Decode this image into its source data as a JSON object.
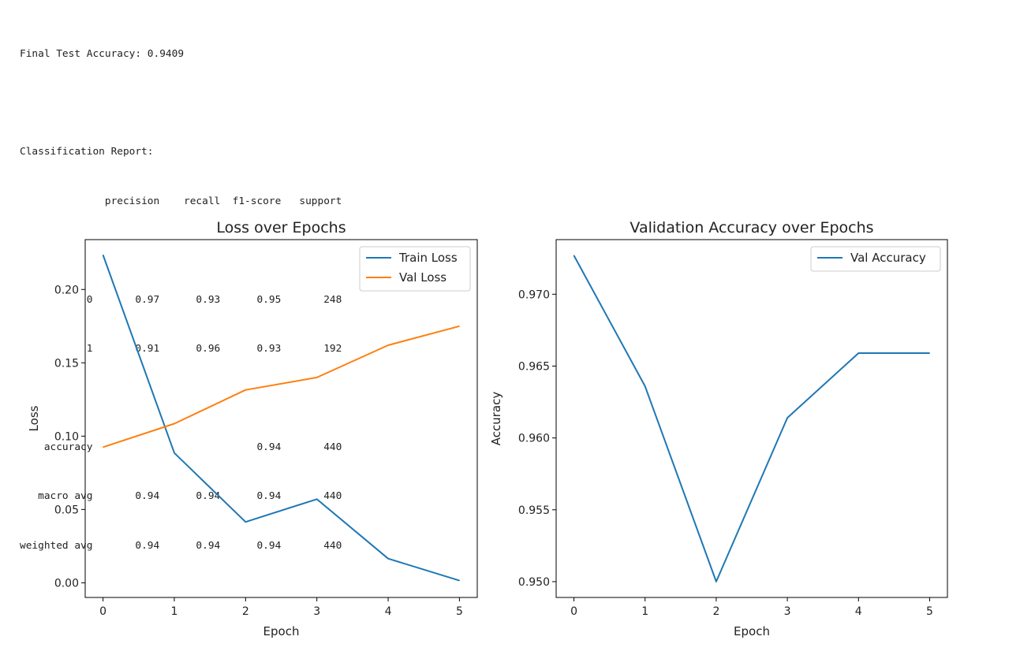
{
  "report": {
    "final_accuracy_line": "Final Test Accuracy: 0.9409",
    "classification_title": "Classification Report:",
    "header_line": "              precision    recall  f1-score   support",
    "rows": [
      "           0       0.97      0.93      0.95       248",
      "           1       0.91      0.96      0.93       192",
      "",
      "    accuracy                           0.94       440",
      "   macro avg       0.94      0.94      0.94       440",
      "weighted avg       0.94      0.94      0.94       440"
    ]
  },
  "chart_data": [
    {
      "type": "line",
      "title": "Loss over Epochs",
      "xlabel": "Epoch",
      "ylabel": "Loss",
      "x": [
        0,
        1,
        2,
        3,
        4,
        5
      ],
      "series": [
        {
          "name": "Train Loss",
          "color": "#1f77b4",
          "values": [
            0.2235,
            0.0885,
            0.0415,
            0.057,
            0.0165,
            0.0015
          ]
        },
        {
          "name": "Val Loss",
          "color": "#ff7f0e",
          "values": [
            0.0925,
            0.1085,
            0.1315,
            0.14,
            0.162,
            0.175
          ]
        }
      ],
      "xlim": [
        -0.25,
        5.25
      ],
      "ylim": [
        -0.01,
        0.234
      ],
      "xticks": [
        "0",
        "1",
        "2",
        "3",
        "4",
        "5"
      ],
      "yticks": [
        0.0,
        0.05,
        0.1,
        0.15,
        0.2
      ],
      "ytick_labels": [
        "0.00",
        "0.05",
        "0.10",
        "0.15",
        "0.20"
      ],
      "legend": "upper right",
      "grid": false
    },
    {
      "type": "line",
      "title": "Validation Accuracy over Epochs",
      "xlabel": "Epoch",
      "ylabel": "Accuracy",
      "x": [
        0,
        1,
        2,
        3,
        4,
        5
      ],
      "series": [
        {
          "name": "Val Accuracy",
          "color": "#1f77b4",
          "values": [
            0.9727,
            0.9636,
            0.95,
            0.9614,
            0.9659,
            0.9659
          ]
        }
      ],
      "xlim": [
        -0.25,
        5.25
      ],
      "ylim": [
        0.9489,
        0.9738
      ],
      "xticks": [
        "0",
        "1",
        "2",
        "3",
        "4",
        "5"
      ],
      "yticks": [
        0.95,
        0.955,
        0.96,
        0.965,
        0.97
      ],
      "ytick_labels": [
        "0.950",
        "0.955",
        "0.960",
        "0.965",
        "0.970"
      ],
      "legend": "upper right",
      "grid": false
    }
  ]
}
